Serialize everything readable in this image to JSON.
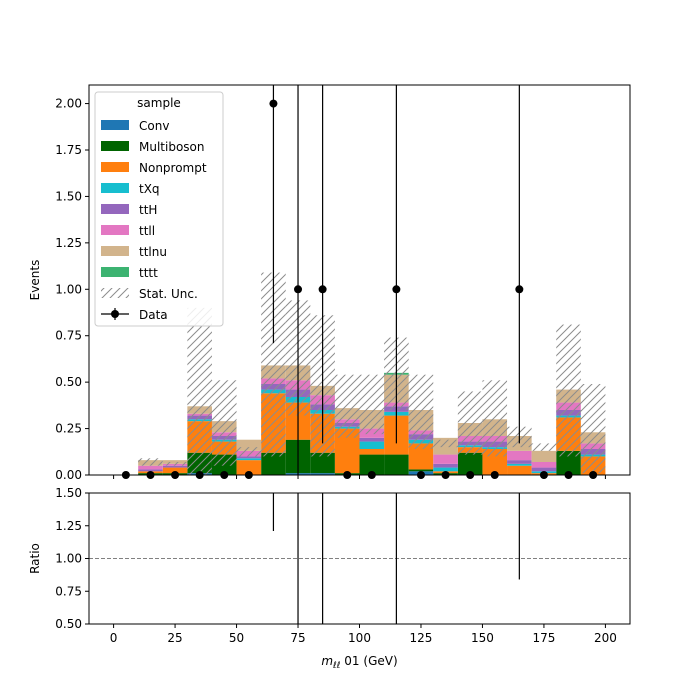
{
  "chart_data": [
    {
      "type": "bar",
      "stacked": true,
      "ylabel": "Events",
      "ylim": [
        0,
        2.1
      ],
      "yticks": [
        "0.00",
        "0.25",
        "0.50",
        "0.75",
        "1.00",
        "1.25",
        "1.50",
        "1.75",
        "2.00"
      ],
      "bin_edges": [
        10,
        20,
        30,
        40,
        50,
        60,
        70,
        80,
        90,
        100,
        110,
        120,
        130,
        140,
        150,
        160,
        170,
        180,
        190,
        200
      ],
      "series": [
        {
          "name": "Conv",
          "color": "#1f77b4",
          "values": [
            0,
            0,
            0.01,
            0,
            0,
            0,
            0.01,
            0.01,
            0,
            0,
            0,
            0.02,
            0,
            0,
            0,
            0,
            0,
            0,
            0
          ]
        },
        {
          "name": "Multiboson",
          "color": "#006400",
          "values": [
            0.01,
            0.01,
            0.11,
            0.11,
            0,
            0.12,
            0.18,
            0.11,
            0.01,
            0.11,
            0.11,
            0.01,
            0.01,
            0.12,
            0,
            0,
            0,
            0.13,
            0
          ]
        },
        {
          "name": "Nonprompt",
          "color": "#ff7f0e",
          "values": [
            0.01,
            0.03,
            0.17,
            0.07,
            0.08,
            0.32,
            0.2,
            0.21,
            0.24,
            0.03,
            0.21,
            0.14,
            0.01,
            0.03,
            0.14,
            0.05,
            0.01,
            0.18,
            0.1
          ]
        },
        {
          "name": "tXq",
          "color": "#17becf",
          "values": [
            0,
            0,
            0.01,
            0.01,
            0.01,
            0.02,
            0.03,
            0.02,
            0.01,
            0.04,
            0.02,
            0.02,
            0.02,
            0.01,
            0.01,
            0.01,
            0.01,
            0.01,
            0.01
          ]
        },
        {
          "name": "ttH",
          "color": "#9467bd",
          "values": [
            0.01,
            0.01,
            0.02,
            0.02,
            0.01,
            0.03,
            0.04,
            0.03,
            0.02,
            0.02,
            0.03,
            0.03,
            0.02,
            0.02,
            0.03,
            0.02,
            0.02,
            0.03,
            0.03
          ]
        },
        {
          "name": "ttll",
          "color": "#e377c2",
          "values": [
            0.02,
            0.01,
            0.01,
            0.02,
            0.03,
            0.03,
            0.05,
            0.05,
            0.02,
            0.05,
            0.02,
            0.02,
            0.05,
            0.03,
            0.03,
            0.05,
            0.03,
            0.04,
            0.03
          ]
        },
        {
          "name": "ttlnu",
          "color": "#d2b48c",
          "values": [
            0.03,
            0.02,
            0.04,
            0.06,
            0.06,
            0.07,
            0.08,
            0.05,
            0.06,
            0.1,
            0.15,
            0.11,
            0.09,
            0.07,
            0.09,
            0.08,
            0.06,
            0.07,
            0.06
          ]
        },
        {
          "name": "tttt",
          "color": "#3cb371",
          "values": [
            0,
            0,
            0,
            0,
            0,
            0,
            0,
            0,
            0,
            0,
            0.01,
            0,
            0,
            0,
            0,
            0,
            0,
            0,
            0
          ]
        }
      ],
      "stat_unc": {
        "name": "Stat. Unc.",
        "low": [
          0.05,
          0.05,
          0,
          0.05,
          0.1,
          0.1,
          0.32,
          0.1,
          0.2,
          0.22,
          0.35,
          0.14,
          0.15,
          0.11,
          0.1,
          0.15,
          0.13,
          0.1,
          0.01
        ],
        "high": [
          0.09,
          0.07,
          0.9,
          0.51,
          0.15,
          1.09,
          0.94,
          0.86,
          0.54,
          0.54,
          0.74,
          0.54,
          0.19,
          0.45,
          0.51,
          0.26,
          0.17,
          0.81,
          0.49
        ]
      },
      "data": {
        "name": "Data",
        "x": [
          5,
          15,
          25,
          35,
          45,
          55,
          65,
          75,
          85,
          95,
          105,
          115,
          125,
          135,
          145,
          155,
          165,
          175,
          185,
          195
        ],
        "y": [
          0,
          0,
          0,
          0,
          0,
          0,
          2,
          1,
          1,
          0,
          0,
          1,
          0,
          0,
          0,
          0,
          1,
          0,
          0,
          0
        ],
        "err_low": [
          0,
          0,
          0,
          0,
          0,
          0,
          1.29,
          1,
          0.83,
          0,
          0,
          0.83,
          0,
          0,
          0,
          0,
          0.83,
          0,
          0,
          0
        ],
        "err_high": [
          0,
          0,
          0,
          0,
          0,
          0,
          2.63,
          2.3,
          2.3,
          0,
          0,
          2.3,
          0,
          0,
          0,
          0,
          2.3,
          0,
          0,
          0
        ]
      },
      "legend": {
        "title": "sample",
        "placement": "upper-left"
      }
    },
    {
      "type": "line",
      "ylabel": "Ratio",
      "xlabel": "m",
      "xlabel_sub": "ℓℓ",
      "xlabel_suffix": " 01 (GeV)",
      "xlim": [
        -10,
        210
      ],
      "ylim": [
        0.5,
        1.5
      ],
      "xticks": [
        "0",
        "25",
        "50",
        "75",
        "100",
        "125",
        "150",
        "175",
        "200"
      ],
      "yticks": [
        "0.50",
        "0.75",
        "1.00",
        "1.25",
        "1.50"
      ],
      "reference_line": 1.0,
      "ratio_points": {
        "x": [
          65,
          75,
          85,
          115,
          165
        ],
        "low": [
          1.21,
          0,
          0,
          0,
          0.84
        ],
        "high": [
          2,
          2,
          2,
          2,
          2
        ]
      }
    }
  ]
}
